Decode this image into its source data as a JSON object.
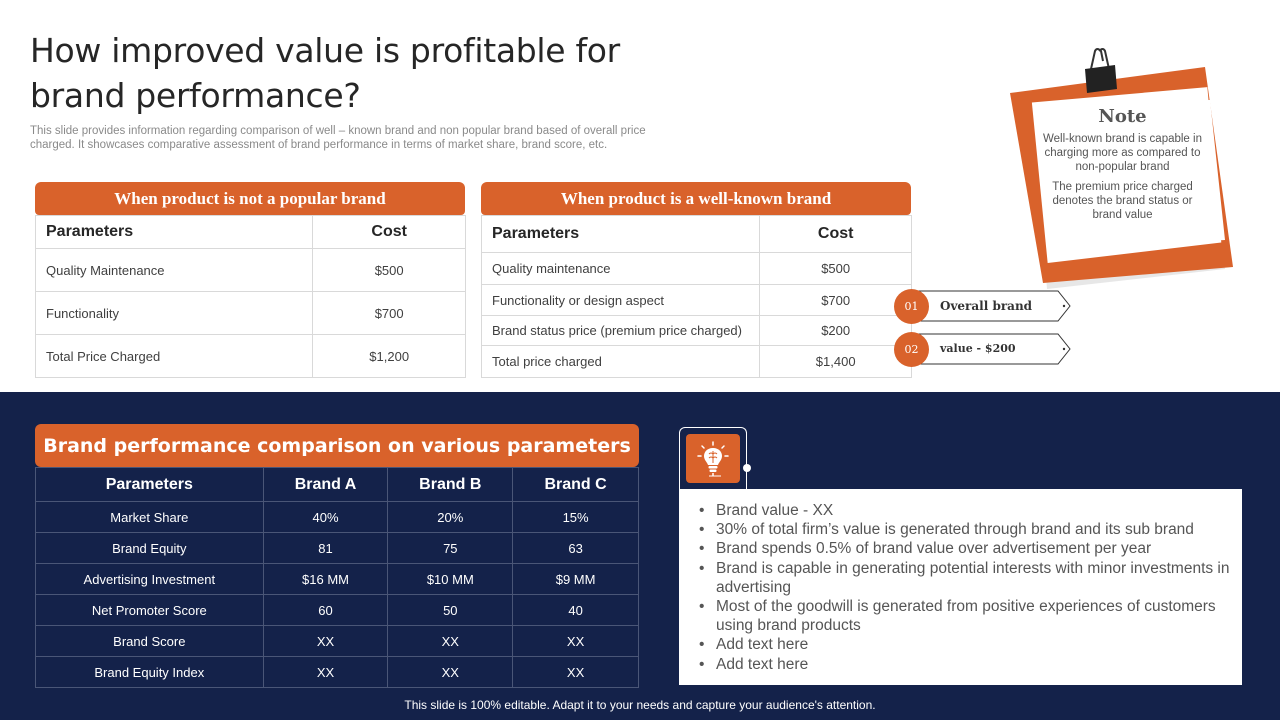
{
  "title": "How improved value is profitable for brand performance?",
  "subtitle": "This slide provides information regarding comparison of well – known brand and non popular brand based of overall price charged. It showcases comparative assessment of brand performance in terms of market share, brand score, etc.",
  "not_popular": {
    "header": "When product is not a popular brand",
    "columns": [
      "Parameters",
      "Cost"
    ],
    "rows": [
      [
        "Quality Maintenance",
        "$500"
      ],
      [
        "Functionality",
        "$700"
      ],
      [
        "Total Price Charged",
        "$1,200"
      ]
    ]
  },
  "well_known": {
    "header": "When product is a well-known brand",
    "columns": [
      "Parameters",
      "Cost"
    ],
    "rows": [
      [
        "Quality maintenance",
        "$500"
      ],
      [
        "Functionality or design aspect",
        "$700"
      ],
      [
        "Brand status price (premium price charged)",
        "$200"
      ],
      [
        "Total price charged",
        "$1,400"
      ]
    ]
  },
  "tags": [
    {
      "num": "01",
      "text": "Overall brand"
    },
    {
      "num": "02",
      "text": "value - $200"
    }
  ],
  "note": {
    "title": "Note",
    "p1": "Well-known brand is capable in charging more as compared to non-popular brand",
    "p2": "The premium price charged denotes the brand status or brand value"
  },
  "comparison": {
    "header": "Brand performance comparison on various parameters",
    "columns": [
      "Parameters",
      "Brand A",
      "Brand B",
      "Brand C"
    ],
    "rows": [
      [
        "Market Share",
        "40%",
        "20%",
        "15%"
      ],
      [
        "Brand Equity",
        "81",
        "75",
        "63"
      ],
      [
        "Advertising Investment",
        "$16 MM",
        "$10 MM",
        "$9 MM"
      ],
      [
        "Net Promoter Score",
        "60",
        "50",
        "40"
      ],
      [
        "Brand Score",
        "XX",
        "XX",
        "XX"
      ],
      [
        "Brand Equity Index",
        "XX",
        "XX",
        "XX"
      ]
    ]
  },
  "bullets": [
    "Brand value - XX",
    "30% of total firm’s value is generated through brand and its sub brand",
    "Brand spends 0.5% of brand value over advertisement per year",
    "Brand is capable in generating potential interests with minor investments in advertising",
    "Most of the goodwill is generated from positive experiences of customers using brand products",
    "Add text here",
    "Add text here"
  ],
  "icons": {
    "bulb": "lightbulb-brain-icon",
    "clip": "binder-clip-icon"
  },
  "colors": {
    "accent": "#d9622b",
    "navy": "#14224a"
  },
  "footer": "This slide is 100% editable. Adapt it to your needs and capture your audience's attention."
}
